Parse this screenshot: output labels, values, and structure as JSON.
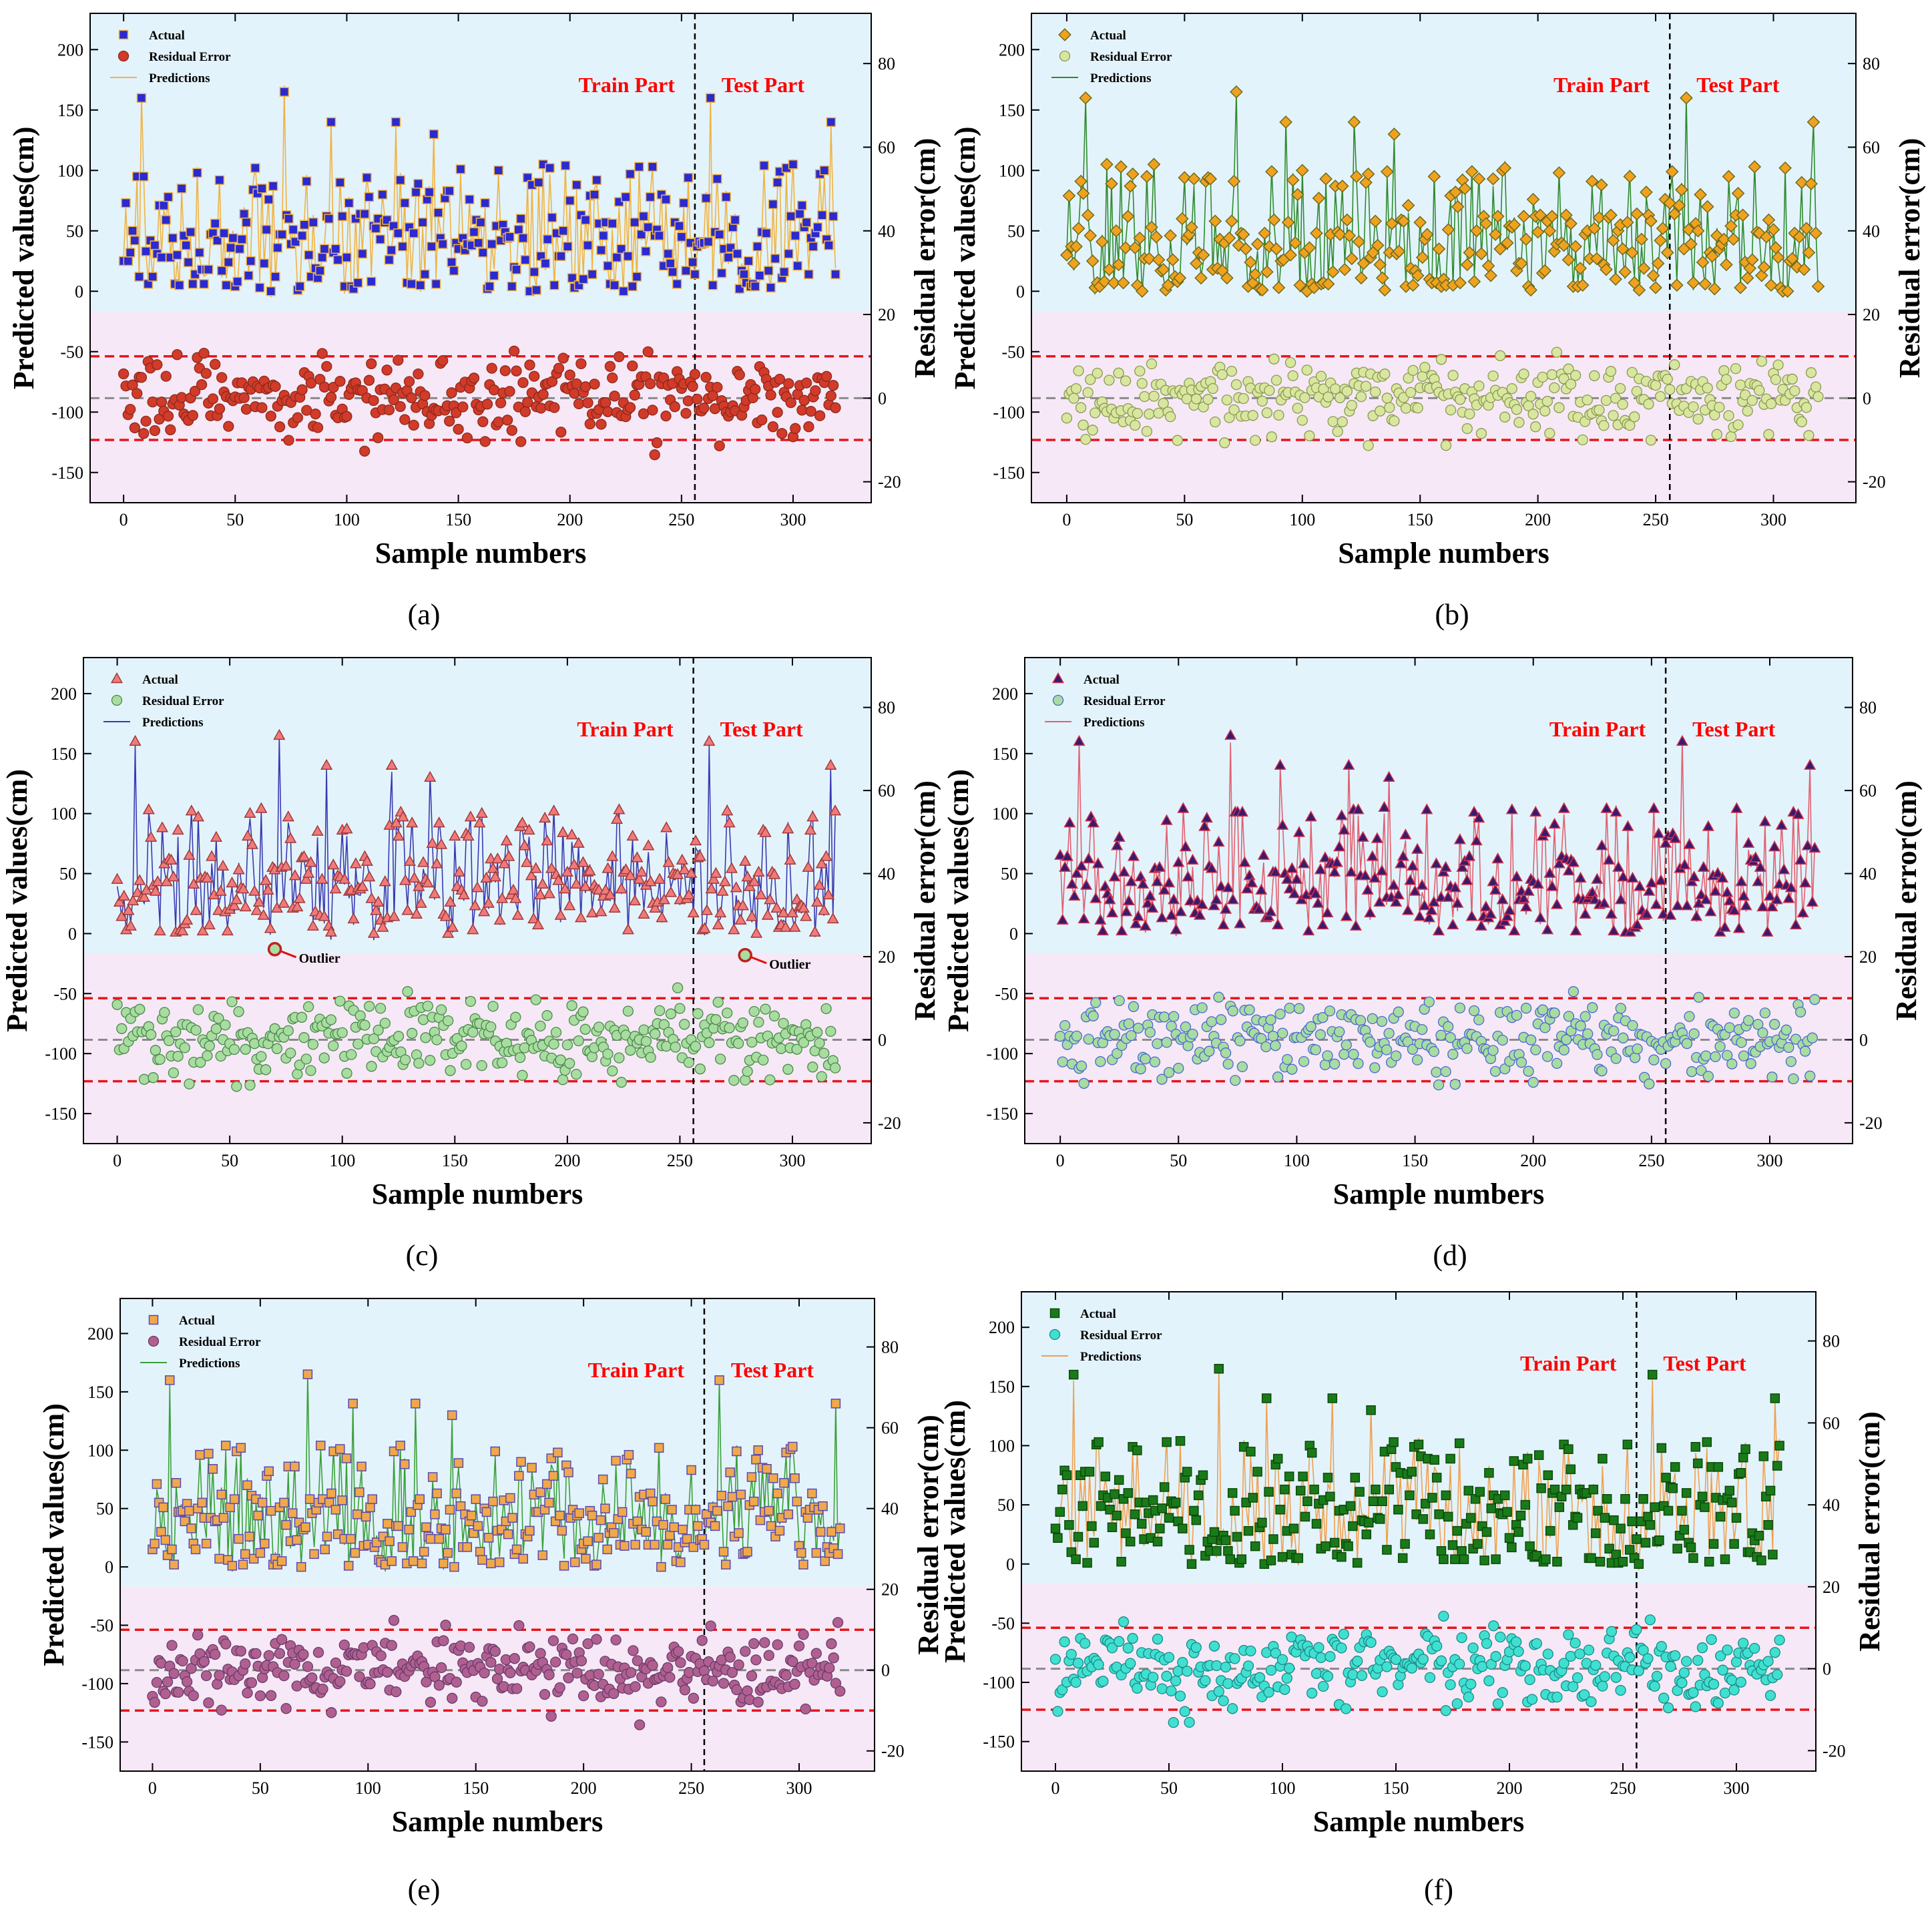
{
  "figure": {
    "left_axis_label": "Predicted values(cm)",
    "right_axis_label": "Residual error(cm)",
    "x_axis_label": "Sample numbers",
    "train_label": "Train Part",
    "test_label": "Test Part",
    "legend": {
      "actual": "Actual",
      "residual": "Residual Error",
      "predictions": "Predictions"
    },
    "colors": {
      "top_band": "#e3f3fb",
      "bottom_band": "#f6e8f6",
      "threshold_line": "#e8141b",
      "zero_line": "#8a8a8a",
      "split_line": "#000000"
    },
    "outlier_label": "Outlier"
  },
  "chart_data": [
    {
      "id": "a",
      "panel_label": "(a)",
      "type": "scatter",
      "actual_marker": "square",
      "actual_fill": "#2a2ad0",
      "actual_edge": "#f0b341",
      "residual_fill": "#d23a2a",
      "residual_edge": "#8a2a1a",
      "prediction_color": "#f0b341",
      "xlim": [
        -15,
        335
      ],
      "x_ticks": [
        0,
        50,
        100,
        150,
        200,
        250,
        300
      ],
      "ylim_left": [
        -175,
        230
      ],
      "y_ticks_left": [
        -150,
        -100,
        -50,
        0,
        50,
        100,
        150,
        200
      ],
      "ylim_right": [
        -25,
        92
      ],
      "y_ticks_right": [
        -20,
        0,
        20,
        40,
        60,
        80
      ],
      "band_boundary_left": -17,
      "thresholds_right": [
        10,
        -10
      ],
      "zero_right": 0,
      "train_test_split_x": 256,
      "n_samples": 320,
      "seed": 11,
      "outliers": []
    },
    {
      "id": "b",
      "panel_label": "(b)",
      "type": "scatter",
      "actual_marker": "diamond",
      "actual_fill": "#f0a21e",
      "actual_edge": "#6b6b20",
      "residual_fill": "#d9e6a0",
      "residual_edge": "#8a9a50",
      "prediction_color": "#2e8b2e",
      "xlim": [
        -15,
        335
      ],
      "x_ticks": [
        0,
        50,
        100,
        150,
        200,
        250,
        300
      ],
      "ylim_left": [
        -175,
        230
      ],
      "y_ticks_left": [
        -150,
        -100,
        -50,
        0,
        50,
        100,
        150,
        200
      ],
      "ylim_right": [
        -25,
        92
      ],
      "y_ticks_right": [
        -20,
        0,
        20,
        40,
        60,
        80
      ],
      "band_boundary_left": -17,
      "thresholds_right": [
        10,
        -10
      ],
      "zero_right": 0,
      "train_test_split_x": 256,
      "n_samples": 320,
      "seed": 23,
      "outliers": []
    },
    {
      "id": "c",
      "panel_label": "(c)",
      "type": "scatter",
      "actual_marker": "triangle",
      "actual_fill": "#f07a7a",
      "actual_edge": "#a03a3a",
      "residual_fill": "#a8dca0",
      "residual_edge": "#4a8a4a",
      "prediction_color": "#3a3ab0",
      "xlim": [
        -15,
        335
      ],
      "x_ticks": [
        0,
        50,
        100,
        150,
        200,
        250,
        300
      ],
      "ylim_left": [
        -175,
        230
      ],
      "y_ticks_left": [
        -150,
        -100,
        -50,
        0,
        50,
        100,
        150,
        200
      ],
      "ylim_right": [
        -25,
        92
      ],
      "y_ticks_right": [
        -20,
        0,
        20,
        40,
        60,
        80
      ],
      "band_boundary_left": -17,
      "thresholds_right": [
        10,
        -10
      ],
      "zero_right": 0,
      "train_test_split_x": 256,
      "n_samples": 320,
      "seed": 37,
      "outliers": [
        {
          "x": 70,
          "y": -13
        },
        {
          "x": 279,
          "y": -18
        }
      ]
    },
    {
      "id": "d",
      "panel_label": "(d)",
      "type": "scatter",
      "actual_marker": "triangle",
      "actual_fill": "#3a1a6e",
      "actual_edge": "#d0304a",
      "residual_fill": "#a8dca0",
      "residual_edge": "#4a6ad0",
      "prediction_color": "#e06070",
      "xlim": [
        -15,
        335
      ],
      "x_ticks": [
        0,
        50,
        100,
        150,
        200,
        250,
        300
      ],
      "ylim_left": [
        -175,
        230
      ],
      "y_ticks_left": [
        -150,
        -100,
        -50,
        0,
        50,
        100,
        150,
        200
      ],
      "ylim_right": [
        -25,
        92
      ],
      "y_ticks_right": [
        -20,
        0,
        20,
        40,
        60,
        80
      ],
      "band_boundary_left": -17,
      "thresholds_right": [
        10,
        -10
      ],
      "zero_right": 0,
      "train_test_split_x": 256,
      "n_samples": 320,
      "seed": 41,
      "outliers": []
    },
    {
      "id": "e",
      "panel_label": "(e)",
      "type": "scatter",
      "actual_marker": "square",
      "actual_fill": "#f0a84a",
      "actual_edge": "#5a4ab0",
      "residual_fill": "#b06090",
      "residual_edge": "#6a3a6a",
      "prediction_color": "#3aa03a",
      "xlim": [
        -15,
        335
      ],
      "x_ticks": [
        0,
        50,
        100,
        150,
        200,
        250,
        300
      ],
      "ylim_left": [
        -175,
        230
      ],
      "y_ticks_left": [
        -150,
        -100,
        -50,
        0,
        50,
        100,
        150,
        200
      ],
      "ylim_right": [
        -25,
        92
      ],
      "y_ticks_right": [
        -20,
        0,
        20,
        40,
        60,
        80
      ],
      "band_boundary_left": -17,
      "thresholds_right": [
        10,
        -10
      ],
      "zero_right": 0,
      "train_test_split_x": 256,
      "n_samples": 320,
      "seed": 53,
      "outliers": []
    },
    {
      "id": "f",
      "panel_label": "(f)",
      "type": "scatter",
      "actual_marker": "square",
      "actual_fill": "#1a7a1a",
      "actual_edge": "#0a4a0a",
      "residual_fill": "#40e0d0",
      "residual_edge": "#1a8a8a",
      "prediction_color": "#f0a050",
      "xlim": [
        -15,
        335
      ],
      "x_ticks": [
        0,
        50,
        100,
        150,
        200,
        250,
        300
      ],
      "ylim_left": [
        -175,
        230
      ],
      "y_ticks_left": [
        -150,
        -100,
        -50,
        0,
        50,
        100,
        150,
        200
      ],
      "ylim_right": [
        -25,
        92
      ],
      "y_ticks_right": [
        -20,
        0,
        20,
        40,
        60,
        80
      ],
      "band_boundary_left": -17,
      "thresholds_right": [
        10,
        -10
      ],
      "zero_right": 0,
      "train_test_split_x": 256,
      "n_samples": 320,
      "seed": 67,
      "outliers": []
    }
  ]
}
